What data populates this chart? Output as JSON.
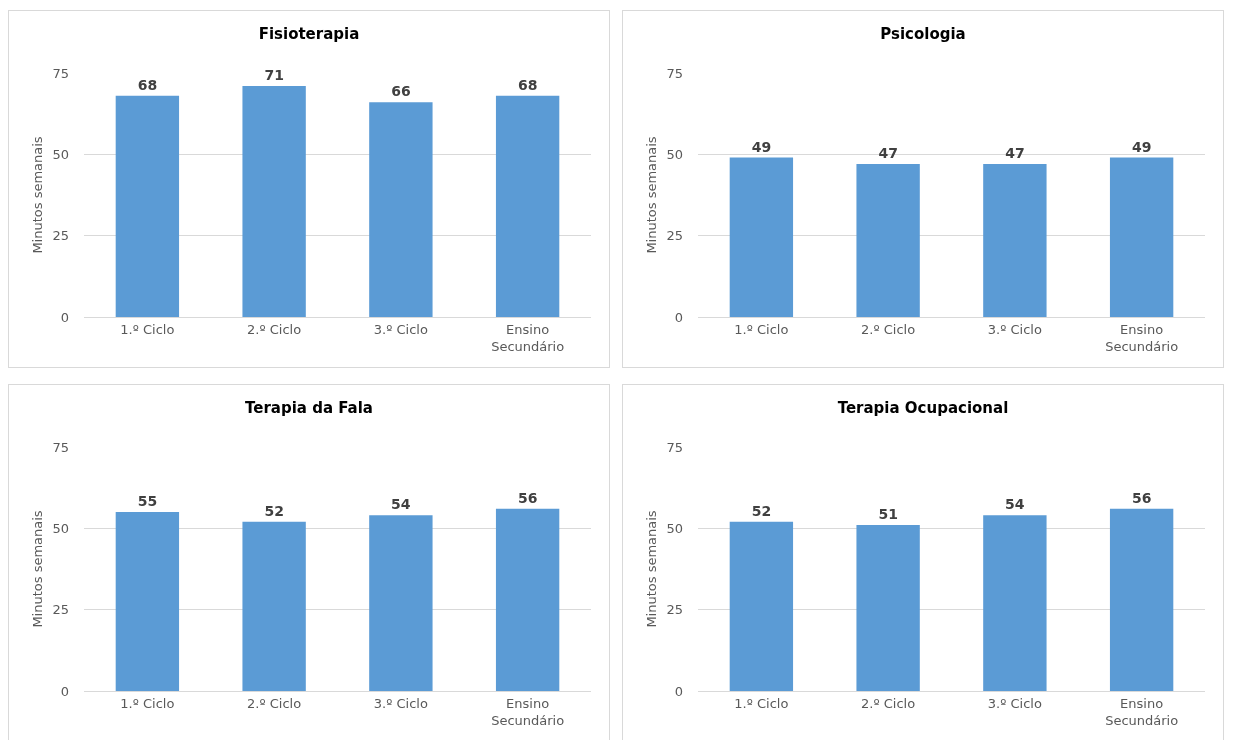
{
  "chart_data": [
    {
      "type": "bar",
      "title": "Fisioterapia",
      "ylabel": "Minutos semanais",
      "categories": [
        "1.º Ciclo",
        "2.º Ciclo",
        "3.º Ciclo",
        "Ensino Secundário"
      ],
      "values": [
        68,
        71,
        66,
        68
      ],
      "color": "#5b9bd5",
      "ylim": [
        0,
        75
      ],
      "yticks": [
        0,
        25,
        50,
        75
      ],
      "grid": "y",
      "data_labels": true
    },
    {
      "type": "bar",
      "title": "Psicologia",
      "ylabel": "Minutos semanais",
      "categories": [
        "1.º Ciclo",
        "2.º Ciclo",
        "3.º Ciclo",
        "Ensino Secundário"
      ],
      "values": [
        49,
        47,
        47,
        49
      ],
      "color": "#5b9bd5",
      "ylim": [
        0,
        75
      ],
      "yticks": [
        0,
        25,
        50,
        75
      ],
      "grid": "y",
      "data_labels": true
    },
    {
      "type": "bar",
      "title": "Terapia da Fala",
      "ylabel": "Minutos semanais",
      "categories": [
        "1.º Ciclo",
        "2.º Ciclo",
        "3.º Ciclo",
        "Ensino Secundário"
      ],
      "values": [
        55,
        52,
        54,
        56
      ],
      "color": "#5b9bd5",
      "ylim": [
        0,
        75
      ],
      "yticks": [
        0,
        25,
        50,
        75
      ],
      "grid": "y",
      "data_labels": true
    },
    {
      "type": "bar",
      "title": "Terapia Ocupacional",
      "ylabel": "Minutos semanais",
      "categories": [
        "1.º Ciclo",
        "2.º Ciclo",
        "3.º Ciclo",
        "Ensino Secundário"
      ],
      "values": [
        52,
        51,
        54,
        56
      ],
      "color": "#5b9bd5",
      "ylim": [
        0,
        75
      ],
      "yticks": [
        0,
        25,
        50,
        75
      ],
      "grid": "y",
      "data_labels": true
    }
  ]
}
